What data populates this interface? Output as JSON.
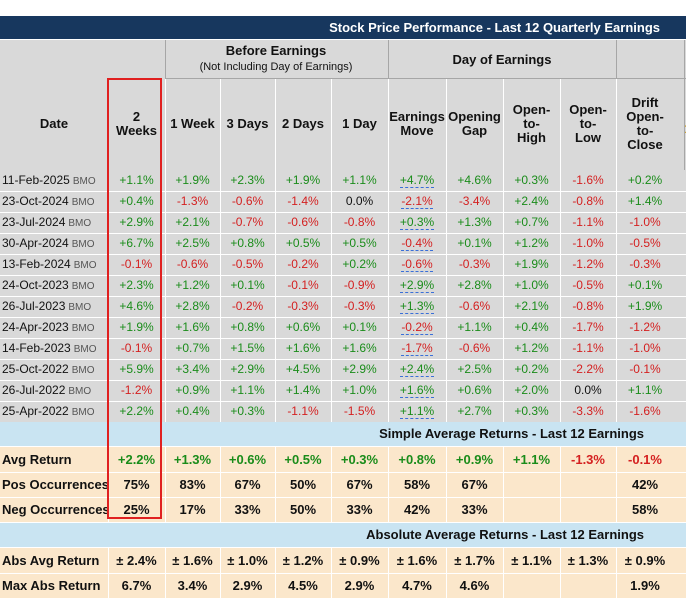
{
  "title": "Stock Price Performance - Last 12 Quarterly Earnings",
  "groups": {
    "before": {
      "title": "Before Earnings",
      "subtitle": "(Not Including Day of Earnings)"
    },
    "day": {
      "title": "Day of Earnings"
    }
  },
  "columns": [
    {
      "label": "Date"
    },
    {
      "label": "2 Weeks"
    },
    {
      "label": "1 Week"
    },
    {
      "label": "3 Days"
    },
    {
      "label": "2 Days"
    },
    {
      "label": "1 Day"
    },
    {
      "label": "Earnings Move"
    },
    {
      "label": "Opening Gap"
    },
    {
      "label": "Open-to-High"
    },
    {
      "label": "Open-to-Low"
    },
    {
      "label": "Drift Open-to-Close"
    }
  ],
  "colors": {
    "positive": "#1a8c1a",
    "negative": "#d42020",
    "header_bg": "#17375e",
    "highlight": "#e02020"
  },
  "rows": [
    {
      "date": "11-Feb-2025",
      "tag": "BMO",
      "values": [
        "+1.1%",
        "+1.9%",
        "+2.3%",
        "+1.9%",
        "+1.1%",
        "+4.7%",
        "+4.6%",
        "+0.3%",
        "-1.6%",
        "+0.2%"
      ]
    },
    {
      "date": "23-Oct-2024",
      "tag": "BMO",
      "values": [
        "+0.4%",
        "-1.3%",
        "-0.6%",
        "-1.4%",
        "0.0%",
        "-2.1%",
        "-3.4%",
        "+2.4%",
        "-0.8%",
        "+1.4%"
      ]
    },
    {
      "date": "23-Jul-2024",
      "tag": "BMO",
      "values": [
        "+2.9%",
        "+2.1%",
        "-0.7%",
        "-0.6%",
        "-0.8%",
        "+0.3%",
        "+1.3%",
        "+0.7%",
        "-1.1%",
        "-1.0%"
      ]
    },
    {
      "date": "30-Apr-2024",
      "tag": "BMO",
      "values": [
        "+6.7%",
        "+2.5%",
        "+0.8%",
        "+0.5%",
        "+0.5%",
        "-0.4%",
        "+0.1%",
        "+1.2%",
        "-1.0%",
        "-0.5%"
      ]
    },
    {
      "date": "13-Feb-2024",
      "tag": "BMO",
      "values": [
        "-0.1%",
        "-0.6%",
        "-0.5%",
        "-0.2%",
        "+0.2%",
        "-0.6%",
        "-0.3%",
        "+1.9%",
        "-1.2%",
        "-0.3%"
      ]
    },
    {
      "date": "24-Oct-2023",
      "tag": "BMO",
      "values": [
        "+2.3%",
        "+1.2%",
        "+0.1%",
        "-0.1%",
        "-0.9%",
        "+2.9%",
        "+2.8%",
        "+1.0%",
        "-0.5%",
        "+0.1%"
      ]
    },
    {
      "date": "26-Jul-2023",
      "tag": "BMO",
      "values": [
        "+4.6%",
        "+2.8%",
        "-0.2%",
        "-0.3%",
        "-0.3%",
        "+1.3%",
        "-0.6%",
        "+2.1%",
        "-0.8%",
        "+1.9%"
      ]
    },
    {
      "date": "24-Apr-2023",
      "tag": "BMO",
      "values": [
        "+1.9%",
        "+1.6%",
        "+0.8%",
        "+0.6%",
        "+0.1%",
        "-0.2%",
        "+1.1%",
        "+0.4%",
        "-1.7%",
        "-1.2%"
      ]
    },
    {
      "date": "14-Feb-2023",
      "tag": "BMO",
      "values": [
        "-0.1%",
        "+0.7%",
        "+1.5%",
        "+1.6%",
        "+1.6%",
        "-1.7%",
        "-0.6%",
        "+1.2%",
        "-1.1%",
        "-1.0%"
      ]
    },
    {
      "date": "25-Oct-2022",
      "tag": "BMO",
      "values": [
        "+5.9%",
        "+3.4%",
        "+2.9%",
        "+4.5%",
        "+2.9%",
        "+2.4%",
        "+2.5%",
        "+0.2%",
        "-2.2%",
        "-0.1%"
      ]
    },
    {
      "date": "26-Jul-2022",
      "tag": "BMO",
      "values": [
        "-1.2%",
        "+0.9%",
        "+1.1%",
        "+1.4%",
        "+1.0%",
        "+1.6%",
        "+0.6%",
        "+2.0%",
        "0.0%",
        "+1.1%"
      ]
    },
    {
      "date": "25-Apr-2022",
      "tag": "BMO",
      "values": [
        "+2.2%",
        "+0.4%",
        "+0.3%",
        "-1.1%",
        "-1.5%",
        "+1.1%",
        "+2.7%",
        "+0.3%",
        "-3.3%",
        "-1.6%"
      ]
    }
  ],
  "simple_section": {
    "title": "Simple Average Returns - Last 12 Earnings",
    "rows": [
      {
        "label": "Avg Return",
        "values": [
          "+2.2%",
          "+1.3%",
          "+0.6%",
          "+0.5%",
          "+0.3%",
          "+0.8%",
          "+0.9%",
          "+1.1%",
          "-1.3%",
          "-0.1%"
        ]
      },
      {
        "label": "Pos Occurrences",
        "values": [
          "75%",
          "83%",
          "67%",
          "50%",
          "67%",
          "58%",
          "67%",
          "",
          "",
          "42%"
        ]
      },
      {
        "label": "Neg Occurrences",
        "values": [
          "25%",
          "17%",
          "33%",
          "50%",
          "33%",
          "42%",
          "33%",
          "",
          "",
          "58%"
        ]
      }
    ]
  },
  "absolute_section": {
    "title": "Absolute Average Returns - Last 12 Earnings",
    "rows": [
      {
        "label": "Abs Avg Return",
        "values": [
          "± 2.4%",
          "± 1.6%",
          "± 1.0%",
          "± 1.2%",
          "± 0.9%",
          "± 1.6%",
          "± 1.7%",
          "± 1.1%",
          "± 1.3%",
          "± 0.9%"
        ]
      },
      {
        "label": "Max Abs Return",
        "values": [
          "6.7%",
          "3.4%",
          "2.9%",
          "4.5%",
          "2.9%",
          "4.7%",
          "4.6%",
          "",
          "",
          "1.9%"
        ]
      }
    ]
  },
  "cut_glyph": "1"
}
